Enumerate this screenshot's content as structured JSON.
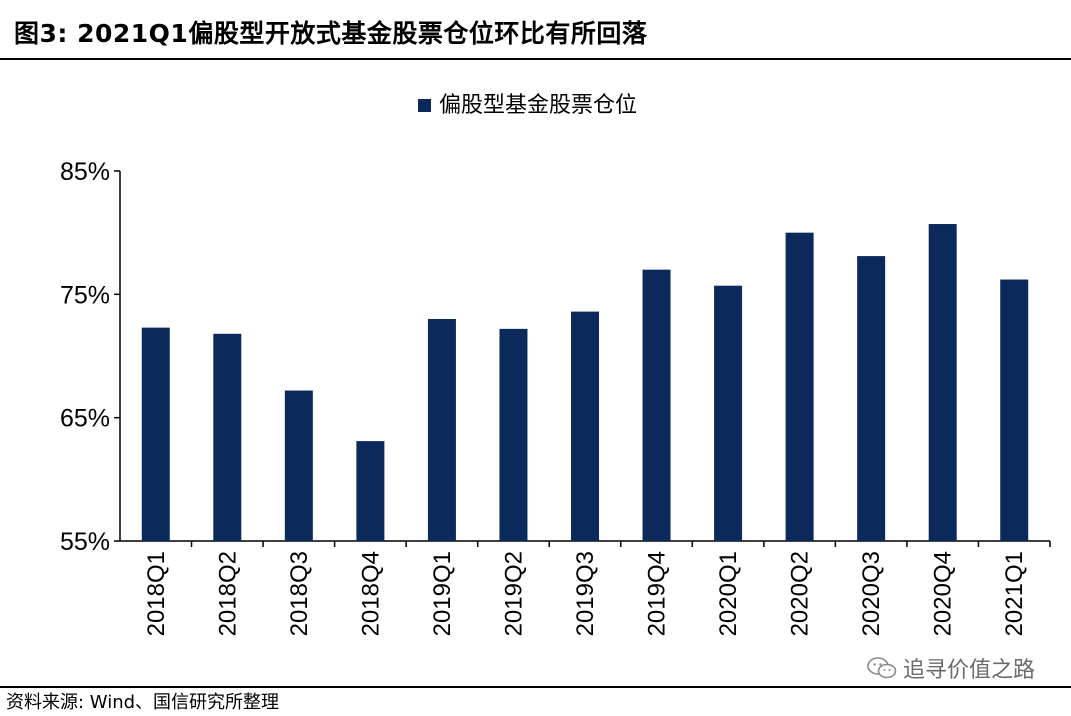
{
  "header": {
    "title": "图3:  2021Q1偏股型开放式基金股票仓位环比有所回落"
  },
  "footer": {
    "source": "资料来源: Wind、国信研究所整理"
  },
  "watermark": {
    "text": "追寻价值之路",
    "icon": "wechat-icon"
  },
  "colors": {
    "bar": "#0b2a5b"
  },
  "chart_data": {
    "type": "bar",
    "categories": [
      "2018Q1",
      "2018Q2",
      "2018Q3",
      "2018Q4",
      "2019Q1",
      "2019Q2",
      "2019Q3",
      "2019Q4",
      "2020Q1",
      "2020Q2",
      "2020Q3",
      "2020Q4",
      "2021Q1"
    ],
    "series": [
      {
        "name": "偏股型基金股票仓位",
        "values": [
          72.3,
          71.8,
          67.2,
          63.1,
          73.0,
          72.2,
          73.6,
          77.0,
          75.7,
          80.0,
          78.1,
          80.7,
          76.2
        ]
      }
    ],
    "ylim": [
      55,
      85
    ],
    "yticks": [
      55,
      65,
      75,
      85
    ],
    "ytick_labels": [
      "55%",
      "65%",
      "75%",
      "85%"
    ],
    "legend": "top-center",
    "grid": false
  }
}
